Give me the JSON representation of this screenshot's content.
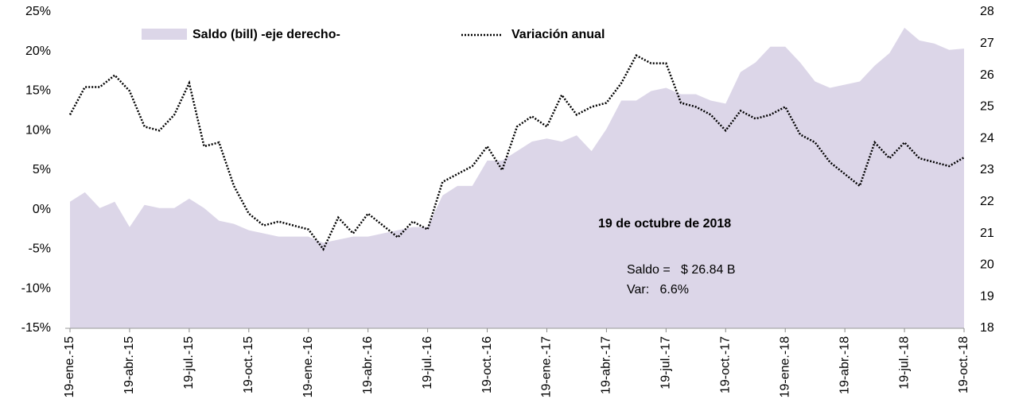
{
  "chart_data": {
    "type": "area-line",
    "legend": "top-left",
    "categories": [
      "19-ene.-15",
      null,
      null,
      null,
      "19-abr.-15",
      null,
      null,
      null,
      "19-jul.-15",
      null,
      null,
      null,
      "19-oct.-15",
      null,
      null,
      null,
      "19-ene.-16",
      null,
      null,
      null,
      "19-abr.-16",
      null,
      null,
      null,
      "19-jul.-16",
      null,
      null,
      null,
      "19-oct.-16",
      null,
      null,
      null,
      "19-ene.-17",
      null,
      null,
      null,
      "19-abr.-17",
      null,
      null,
      null,
      "19-jul.-17",
      null,
      null,
      null,
      "19-oct.-17",
      null,
      null,
      null,
      "19-ene.-18",
      null,
      null,
      null,
      "19-abr.-18",
      null,
      null,
      null,
      "19-jul.-18",
      null,
      null,
      null,
      "19-oct.-18"
    ],
    "series": [
      {
        "name": "Saldo (bill) -eje derecho-",
        "type": "area",
        "axis": "y2",
        "color": "#dcd6e8",
        "values": [
          22.0,
          22.3,
          21.8,
          22.0,
          21.2,
          21.9,
          21.8,
          21.8,
          22.1,
          21.8,
          21.4,
          21.3,
          21.1,
          21.0,
          20.9,
          20.9,
          20.9,
          20.7,
          20.8,
          20.9,
          20.9,
          21.0,
          21.1,
          21.2,
          21.2,
          22.2,
          22.5,
          22.5,
          23.3,
          23.3,
          23.6,
          23.9,
          24.0,
          23.9,
          24.1,
          23.6,
          24.3,
          25.2,
          25.2,
          25.5,
          25.6,
          25.4,
          25.4,
          25.2,
          25.1,
          26.1,
          26.4,
          26.9,
          26.9,
          26.4,
          25.8,
          25.6,
          25.7,
          25.8,
          26.3,
          26.7,
          27.5,
          27.1,
          27.0,
          26.8,
          26.84
        ]
      },
      {
        "name": "Variación anual",
        "type": "line",
        "color": "#000000",
        "values": [
          12,
          15.5,
          15.5,
          17,
          15,
          10.5,
          10,
          12,
          16,
          8,
          8.5,
          3,
          -0.5,
          -2,
          -1.5,
          -2,
          -2.5,
          -5,
          -1,
          -3,
          -0.5,
          -2,
          -3.5,
          -1.5,
          -2.5,
          3.5,
          4.5,
          5.5,
          8,
          5,
          10.5,
          11.8,
          10.5,
          14.5,
          12,
          13,
          13.5,
          16,
          19.5,
          18.5,
          18.5,
          13.5,
          13,
          12,
          10,
          12.5,
          11.5,
          12,
          13,
          9.5,
          8.5,
          6,
          4.5,
          3,
          8.5,
          6.5,
          8.5,
          6.5,
          6,
          5.5,
          6.6
        ]
      }
    ],
    "ylim": [
      -15,
      25
    ],
    "yticks": [
      {
        "value": -15,
        "label": "-15%"
      },
      {
        "value": -10,
        "label": "-10%"
      },
      {
        "value": -5,
        "label": "-5%"
      },
      {
        "value": 0,
        "label": "0%"
      },
      {
        "value": 5,
        "label": "5%"
      },
      {
        "value": 10,
        "label": "10%"
      },
      {
        "value": 15,
        "label": "15%"
      },
      {
        "value": 20,
        "label": "20%"
      },
      {
        "value": 25,
        "label": "25%"
      }
    ],
    "y2lim": [
      18,
      28
    ],
    "y2ticks": [
      18,
      19,
      20,
      21,
      22,
      23,
      24,
      25,
      26,
      27,
      28
    ],
    "annotations": [
      "19 de octubre de 2018",
      "Saldo =   $ 26.84 B",
      "Var:   6.6%"
    ]
  }
}
